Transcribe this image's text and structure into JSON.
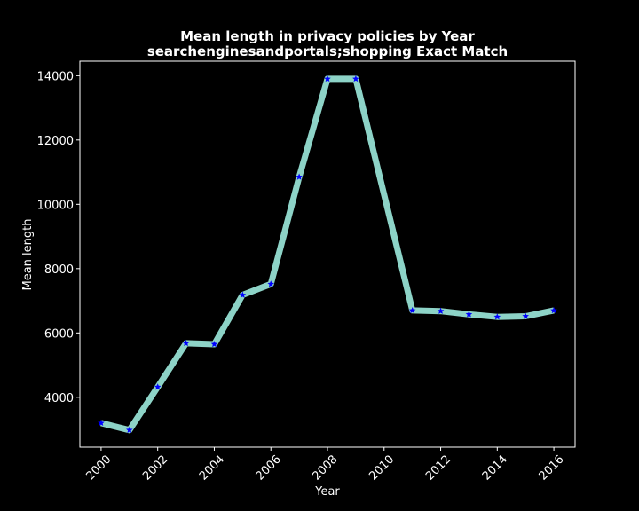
{
  "chart_data": {
    "type": "line",
    "title": "Mean length in privacy policies by Year",
    "subtitle": "searchenginesandportals;shopping Exact Match",
    "xlabel": "Year",
    "ylabel": "Mean length",
    "x": [
      2000,
      2001,
      2002,
      2003,
      2004,
      2005,
      2006,
      2007,
      2008,
      2009,
      2011,
      2012,
      2013,
      2014,
      2015,
      2016
    ],
    "y": [
      3200,
      2980,
      4320,
      5680,
      5650,
      7180,
      7520,
      10850,
      13900,
      13900,
      6700,
      6680,
      6580,
      6500,
      6520,
      6700
    ],
    "xlim": [
      1999.25,
      2016.75
    ],
    "ylim": [
      2450,
      14450
    ],
    "xticks": [
      "2000",
      "2002",
      "2004",
      "2006",
      "2008",
      "2010",
      "2012",
      "2014",
      "2016"
    ],
    "yticks": [
      "4000",
      "6000",
      "8000",
      "10000",
      "12000",
      "14000"
    ],
    "line_color": "#8dd3c7",
    "marker_color": "#0000ff",
    "marker": "star",
    "grid": false,
    "background": "#000000",
    "axes_color": "#ffffff"
  }
}
